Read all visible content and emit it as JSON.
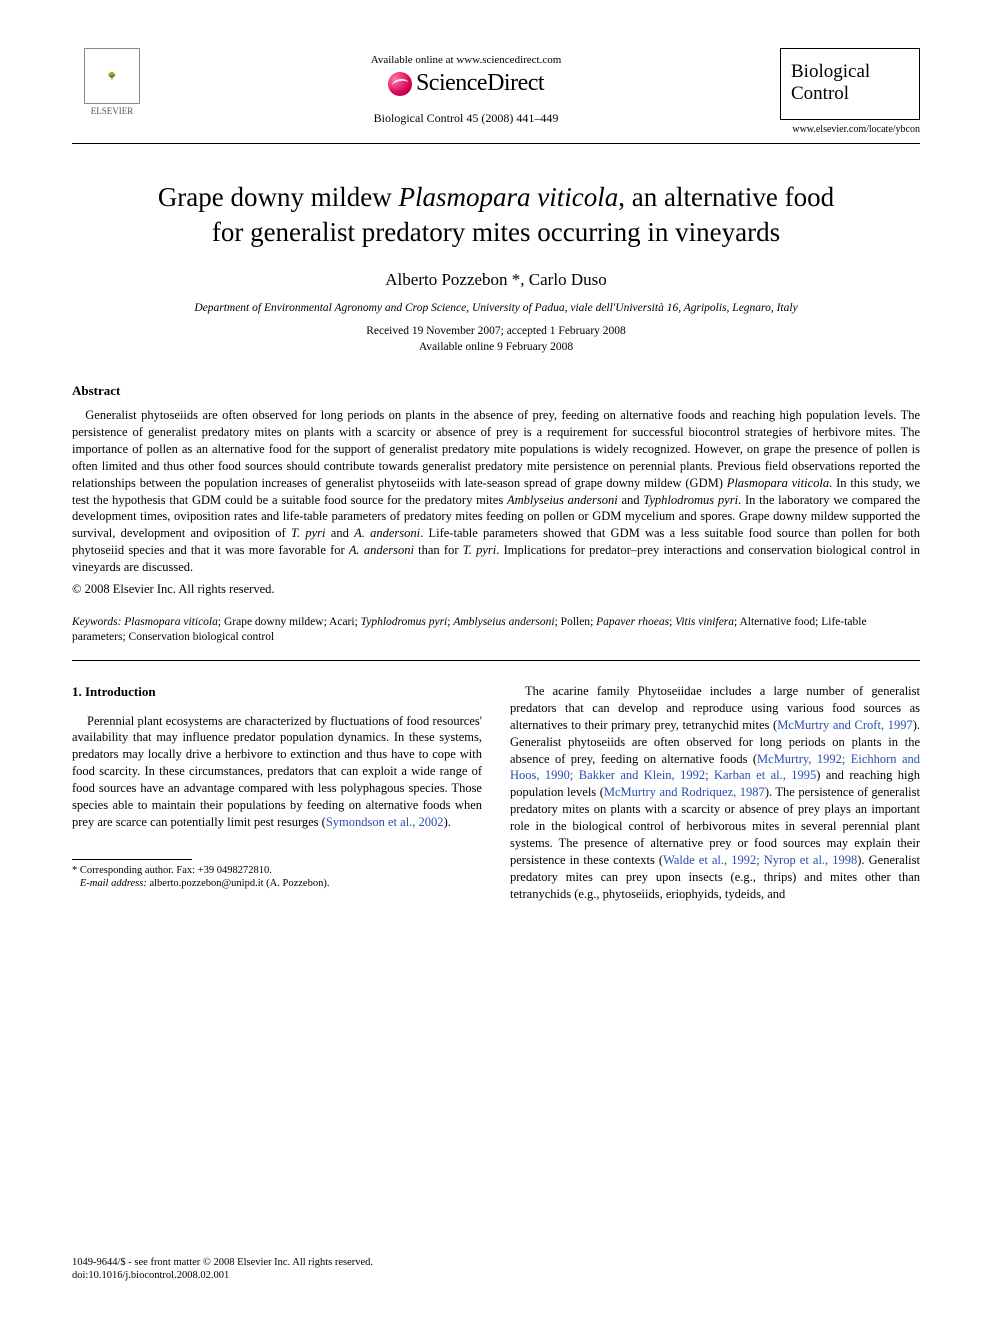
{
  "header": {
    "elsevier_label": "ELSEVIER",
    "available_line": "Available online at www.sciencedirect.com",
    "sd_label": "ScienceDirect",
    "journal_ref": "Biological Control 45 (2008) 441–449",
    "journal_name_top": "Biological",
    "journal_name_bot": "Control",
    "journal_url": "www.elsevier.com/locate/ybcon"
  },
  "title": {
    "line1_pre": "Grape downy mildew ",
    "line1_ital": "Plasmopara viticola",
    "line1_post": ", an alternative food",
    "line2": "for generalist predatory mites occurring in vineyards"
  },
  "authors": "Alberto Pozzebon *, Carlo Duso",
  "affiliation": "Department of Environmental Agronomy and Crop Science, University of Padua, viale dell'Università 16, Agripolis, Legnaro, Italy",
  "dates_line1": "Received 19 November 2007; accepted 1 February 2008",
  "dates_line2": "Available online 9 February 2008",
  "abstract": {
    "heading": "Abstract",
    "para_pre": "Generalist phytoseiids are often observed for long periods on plants in the absence of prey, feeding on alternative foods and reaching high population levels. The persistence of generalist predatory mites on plants with a scarcity or absence of prey is a requirement for successful biocontrol strategies of herbivore mites. The importance of pollen as an alternative food for the support of generalist predatory mite populations is widely recognized. However, on grape the presence of pollen is often limited and thus other food sources should contribute towards generalist predatory mite persistence on perennial plants. Previous field observations reported the relationships between the population increases of generalist phytoseiids with late-season spread of grape downy mildew (GDM) ",
    "para_ital1": "Plasmopara viticola",
    "para_mid1": ". In this study, we test the hypothesis that GDM could be a suitable food source for the predatory mites ",
    "para_ital2": "Amblyseius andersoni",
    "para_mid2": " and ",
    "para_ital3": "Typhlodromus pyri",
    "para_mid3": ". In the laboratory we compared the development times, oviposition rates and life-table parameters of predatory mites feeding on pollen or GDM mycelium and spores. Grape downy mildew supported the survival, development and oviposition of ",
    "para_ital4": "T. pyri",
    "para_mid4": " and ",
    "para_ital5": "A. andersoni",
    "para_mid5": ". Life-table parameters showed that GDM was a less suitable food source than pollen for both phytoseiid species and that it was more favorable for ",
    "para_ital6": "A. andersoni",
    "para_mid6": " than for ",
    "para_ital7": "T. pyri",
    "para_post": ". Implications for predator–prey interactions and conservation biological control in vineyards are discussed.",
    "copyright": "© 2008 Elsevier Inc. All rights reserved."
  },
  "keywords": {
    "label": "Keywords:",
    "items": [
      {
        "text": "Plasmopara viticola",
        "ital": true
      },
      {
        "text": "Grape downy mildew",
        "ital": false
      },
      {
        "text": "Acari",
        "ital": false
      },
      {
        "text": "Typhlodromus pyri",
        "ital": true
      },
      {
        "text": "Amblyseius andersoni",
        "ital": true
      },
      {
        "text": "Pollen",
        "ital": false
      },
      {
        "text": "Papaver rhoeas",
        "ital": true
      },
      {
        "text": "Vitis vinifera",
        "ital": true
      },
      {
        "text": "Alternative food",
        "ital": false
      },
      {
        "text": "Life-table parameters",
        "ital": false
      },
      {
        "text": "Conservation biological control",
        "ital": false
      }
    ]
  },
  "intro": {
    "heading": "1. Introduction",
    "left_p1_pre": "Perennial plant ecosystems are characterized by fluctuations of food resources' availability that may influence predator population dynamics. In these systems, predators may locally drive a herbivore to extinction and thus have to cope with food scarcity. In these circumstances, predators that can exploit a wide range of food sources have an advantage compared with less polyphagous species. Those species able to maintain their populations by feeding on alternative foods when prey are scarce can potentially limit pest resurges (",
    "left_p1_cite": "Symondson et al., 2002",
    "left_p1_post": ").",
    "right_p1_a": "The acarine family Phytoseiidae includes a large number of generalist predators that can develop and reproduce using various food sources as alternatives to their primary prey, tetranychid mites (",
    "right_cite1": "McMurtry and Croft, 1997",
    "right_p1_b": "). Generalist phytoseiids are often observed for long periods on plants in the absence of prey, feeding on alternative foods (",
    "right_cite2": "McMurtry, 1992; Eichhorn and Hoos, 1990; Bakker and Klein, 1992; Karban et al., 1995",
    "right_p1_c": ") and reaching high population levels (",
    "right_cite3": "McMurtry and Rodriquez, 1987",
    "right_p1_d": "). The persistence of generalist predatory mites on plants with a scarcity or absence of prey plays an important role in the biological control of herbivorous mites in several perennial plant systems. The presence of alternative prey or food sources may explain their persistence in these contexts (",
    "right_cite4": "Walde et al., 1992; Nyrop et al., 1998",
    "right_p1_e": "). Generalist predatory mites can prey upon insects (e.g., thrips) and mites other than tetranychids (e.g., phytoseiids, eriophyids, tydeids, and"
  },
  "footnote": {
    "corr_label": "* Corresponding author. Fax: +39 0498272810.",
    "email_label": "E-mail address:",
    "email": "alberto.pozzebon@unipd.it",
    "email_paren": "(A. Pozzebon)."
  },
  "footer": {
    "line1": "1049-9644/$ - see front matter © 2008 Elsevier Inc. All rights reserved.",
    "line2": "doi:10.1016/j.biocontrol.2008.02.001"
  },
  "colors": {
    "text": "#000000",
    "cite": "#2a4db0",
    "background": "#ffffff"
  }
}
